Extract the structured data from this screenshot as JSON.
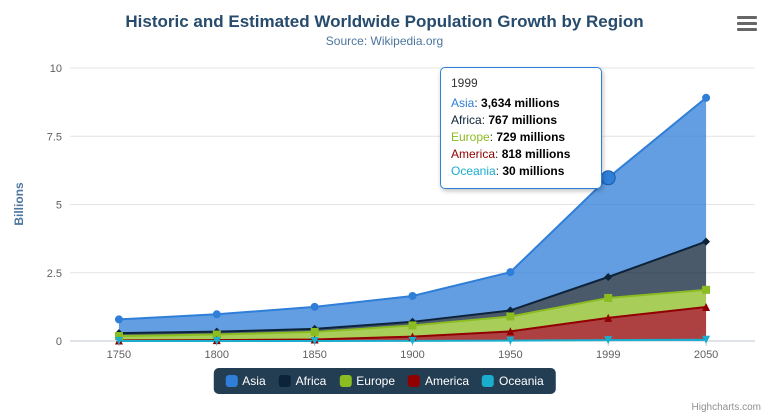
{
  "title": "Historic and Estimated Worldwide Population Growth by Region",
  "subtitle": "Source: Wikipedia.org",
  "credits": "Highcharts.com",
  "chart_data": {
    "type": "area",
    "stacking": "normal",
    "title": "Historic and Estimated Worldwide Population Growth by Region",
    "subtitle": "Source: Wikipedia.org",
    "categories": [
      "1750",
      "1800",
      "1850",
      "1900",
      "1950",
      "1999",
      "2050"
    ],
    "values_unit": "millions",
    "yaxis_unit": "billions",
    "ylabel": "Billions",
    "xlabel": "",
    "ylim": [
      0,
      10
    ],
    "y_ticks": [
      0,
      2.5,
      5,
      7.5,
      10
    ],
    "grid": true,
    "legend_position": "bottom",
    "series": [
      {
        "name": "Asia",
        "color": "#2f7ed8",
        "marker": "circle",
        "values": [
          502,
          635,
          809,
          947,
          1402,
          3634,
          5268
        ]
      },
      {
        "name": "Africa",
        "color": "#0d233a",
        "marker": "diamond",
        "values": [
          106,
          107,
          111,
          133,
          221,
          767,
          1766
        ]
      },
      {
        "name": "Europe",
        "color": "#8bbc21",
        "marker": "square",
        "values": [
          163,
          203,
          276,
          408,
          547,
          729,
          628
        ]
      },
      {
        "name": "America",
        "color": "#910000",
        "marker": "triangle",
        "values": [
          18,
          31,
          54,
          156,
          339,
          818,
          1201
        ]
      },
      {
        "name": "Oceania",
        "color": "#1aadce",
        "marker": "triangle-down",
        "values": [
          2,
          2,
          2,
          6,
          13,
          30,
          46
        ]
      }
    ],
    "hovered": {
      "series": "Asia",
      "category": "1999"
    }
  },
  "tooltip": {
    "header": "1999",
    "rows": [
      {
        "label": "Asia",
        "value": "3,634 millions"
      },
      {
        "label": "Africa",
        "value": "767 millions"
      },
      {
        "label": "Europe",
        "value": "729 millions"
      },
      {
        "label": "America",
        "value": "818 millions"
      },
      {
        "label": "Oceania",
        "value": "30 millions"
      }
    ]
  }
}
